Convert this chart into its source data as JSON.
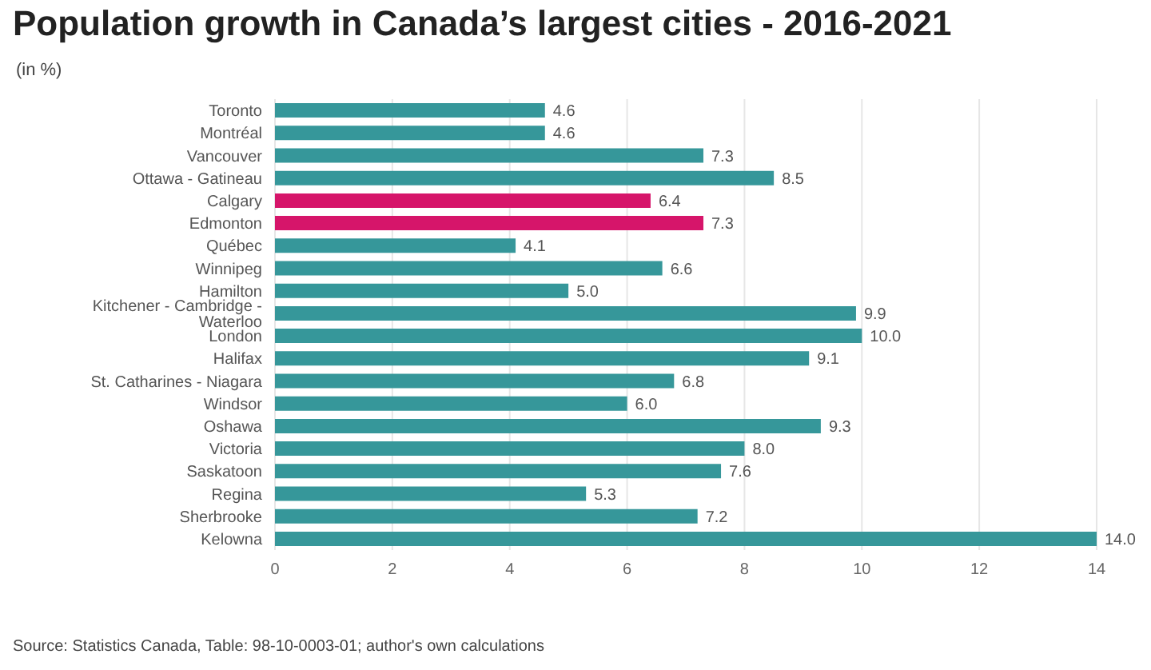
{
  "chart_data": {
    "type": "bar",
    "orientation": "horizontal",
    "title": "Population growth in Canada’s largest cities - 2016-2021",
    "subtitle": "(in %)",
    "categories": [
      "Toronto",
      "Montréal",
      "Vancouver",
      "Ottawa - Gatineau",
      "Calgary",
      "Edmonton",
      "Québec",
      "Winnipeg",
      "Hamilton",
      "Kitchener - Cambridge - Waterloo",
      "London",
      "Halifax",
      "St. Catharines - Niagara",
      "Windsor",
      "Oshawa",
      "Victoria",
      "Saskatoon",
      "Regina",
      "Sherbrooke",
      "Kelowna"
    ],
    "values": [
      4.6,
      4.6,
      7.3,
      8.5,
      6.4,
      7.3,
      4.1,
      6.6,
      5.0,
      9.9,
      10.0,
      9.1,
      6.8,
      6.0,
      9.3,
      8.0,
      7.6,
      5.3,
      7.2,
      14.0
    ],
    "value_labels": [
      "4.6",
      "4.6",
      "7.3",
      "8.5",
      "6.4",
      "7.3",
      "4.1",
      "6.6",
      "5.0",
      "9.9",
      "10.0",
      "9.1",
      "6.8",
      "6.0",
      "9.3",
      "8.0",
      "7.6",
      "5.3",
      "7.2",
      "14.0"
    ],
    "colors": [
      "#36979a",
      "#36979a",
      "#36979a",
      "#36979a",
      "#d6156a",
      "#d6156a",
      "#36979a",
      "#36979a",
      "#36979a",
      "#36979a",
      "#36979a",
      "#36979a",
      "#36979a",
      "#36979a",
      "#36979a",
      "#36979a",
      "#36979a",
      "#36979a",
      "#36979a",
      "#36979a"
    ],
    "xlim": [
      0,
      14
    ],
    "xticks": [
      0,
      2,
      4,
      6,
      8,
      10,
      12,
      14
    ],
    "grid": "x",
    "annotations": [
      "Source: Statistics Canada, Table: 98-10-0003-01; author's own calculations"
    ]
  }
}
